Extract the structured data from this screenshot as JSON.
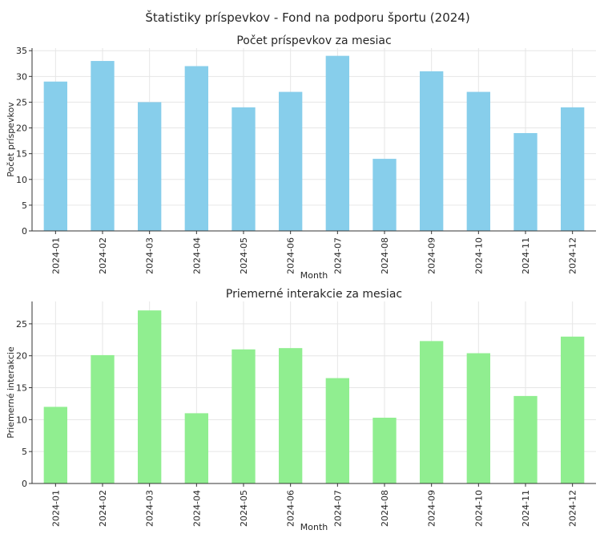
{
  "figure": {
    "suptitle": "Štatistiky príspevkov - Fond na podporu športu (2024)"
  },
  "chart_data": [
    {
      "type": "bar",
      "title": "Počet príspevkov za mesiac",
      "xlabel": "Month",
      "ylabel": "Počet príspevkov",
      "categories": [
        "2024-01",
        "2024-02",
        "2024-03",
        "2024-04",
        "2024-05",
        "2024-06",
        "2024-07",
        "2024-08",
        "2024-09",
        "2024-10",
        "2024-11",
        "2024-12"
      ],
      "values": [
        29,
        33,
        25,
        32,
        24,
        27,
        34,
        14,
        31,
        27,
        19,
        24
      ],
      "ylim": [
        0,
        35.5
      ],
      "yticks": [
        0,
        5,
        10,
        15,
        20,
        25,
        30,
        35
      ],
      "color": "#87ceeb",
      "grid": true
    },
    {
      "type": "bar",
      "title": "Priemerné interakcie za mesiac",
      "xlabel": "Month",
      "ylabel": "Priemerné interakcie",
      "categories": [
        "2024-01",
        "2024-02",
        "2024-03",
        "2024-04",
        "2024-05",
        "2024-06",
        "2024-07",
        "2024-08",
        "2024-09",
        "2024-10",
        "2024-11",
        "2024-12"
      ],
      "values": [
        12.0,
        20.1,
        27.1,
        11.0,
        21.0,
        21.2,
        16.5,
        10.3,
        22.3,
        20.4,
        13.7,
        23.0
      ],
      "ylim": [
        0,
        28.5
      ],
      "yticks": [
        0,
        5,
        10,
        15,
        20,
        25
      ],
      "color": "#90ee90",
      "grid": true
    }
  ]
}
